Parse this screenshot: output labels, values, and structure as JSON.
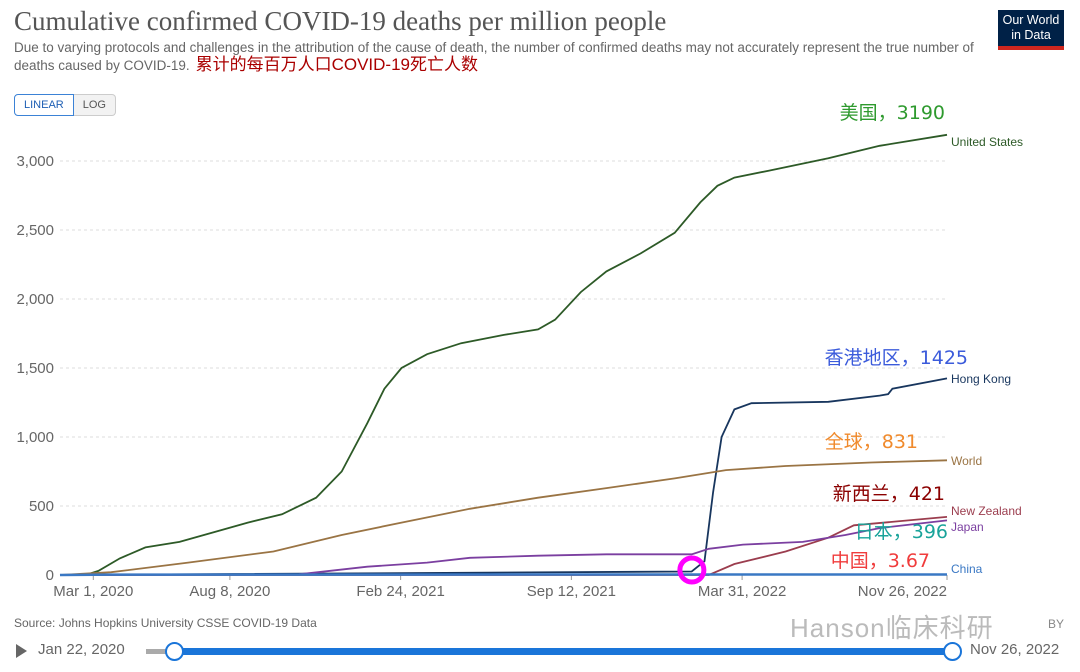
{
  "header": {
    "title": "Cumulative confirmed COVID-19 deaths per million people",
    "subtitle": "Due to varying protocols and challenges in the attribution of the cause of death, the number of confirmed deaths may not accurately represent the true number of deaths caused by COVID-19.",
    "subtitle_cn": "累计的每百万人口COVID-19死亡人数",
    "logo": "Our World in Data"
  },
  "controls": {
    "linear": "LINEAR",
    "log": "LOG"
  },
  "footer": {
    "source": "Source: Johns Hopkins University CSSE COVID-19 Data",
    "watermark": "Hanson临床科研",
    "by": "BY",
    "start_date": "Jan 22, 2020",
    "end_date": "Nov 26, 2022"
  },
  "chart_data": {
    "type": "line",
    "title": "Cumulative confirmed COVID-19 deaths per million people",
    "x_unit": "days since Jan 22, 2020",
    "xlim": [
      0,
      1039
    ],
    "ylim": [
      0,
      3000
    ],
    "y_ticks": [
      0,
      500,
      1000,
      1500,
      2000,
      2500,
      3000
    ],
    "y_tick_labels": [
      "0",
      "500",
      "1,000",
      "1,500",
      "2,000",
      "2,500",
      "3,000"
    ],
    "x_ticks": [
      39,
      199,
      399,
      599,
      799,
      1039
    ],
    "x_tick_labels": [
      "Mar 1, 2020",
      "Aug 8, 2020",
      "Feb 24, 2021",
      "Sep 12, 2021",
      "Mar 31, 2022",
      "Nov 26, 2022"
    ],
    "grid": true,
    "series": [
      {
        "name": "United States",
        "color": "#2d5a27",
        "annotation": "美国，3190",
        "annotation_color": "#2e9a2e",
        "points": [
          [
            0,
            0
          ],
          [
            30,
            0
          ],
          [
            45,
            30
          ],
          [
            70,
            120
          ],
          [
            100,
            200
          ],
          [
            140,
            240
          ],
          [
            180,
            310
          ],
          [
            220,
            380
          ],
          [
            260,
            440
          ],
          [
            300,
            560
          ],
          [
            330,
            750
          ],
          [
            360,
            1100
          ],
          [
            380,
            1350
          ],
          [
            400,
            1500
          ],
          [
            430,
            1600
          ],
          [
            470,
            1680
          ],
          [
            520,
            1740
          ],
          [
            560,
            1780
          ],
          [
            580,
            1850
          ],
          [
            610,
            2050
          ],
          [
            640,
            2200
          ],
          [
            680,
            2330
          ],
          [
            720,
            2480
          ],
          [
            750,
            2700
          ],
          [
            770,
            2820
          ],
          [
            790,
            2880
          ],
          [
            830,
            2930
          ],
          [
            900,
            3020
          ],
          [
            960,
            3110
          ],
          [
            1039,
            3190
          ]
        ]
      },
      {
        "name": "Hong Kong",
        "color": "#18365e",
        "annotation": "香港地区，1425",
        "annotation_color": "#3b5bdb",
        "points": [
          [
            0,
            0
          ],
          [
            740,
            25
          ],
          [
            755,
            100
          ],
          [
            765,
            600
          ],
          [
            775,
            1000
          ],
          [
            790,
            1200
          ],
          [
            810,
            1245
          ],
          [
            900,
            1255
          ],
          [
            960,
            1300
          ],
          [
            970,
            1310
          ],
          [
            975,
            1350
          ],
          [
            1039,
            1425
          ]
        ]
      },
      {
        "name": "World",
        "color": "#9a7444",
        "annotation": "全球，831",
        "annotation_color": "#f08a2c",
        "points": [
          [
            0,
            0
          ],
          [
            60,
            20
          ],
          [
            150,
            90
          ],
          [
            250,
            170
          ],
          [
            330,
            290
          ],
          [
            400,
            380
          ],
          [
            480,
            480
          ],
          [
            560,
            560
          ],
          [
            640,
            630
          ],
          [
            720,
            700
          ],
          [
            780,
            760
          ],
          [
            850,
            790
          ],
          [
            950,
            815
          ],
          [
            1039,
            831
          ]
        ]
      },
      {
        "name": "New Zealand",
        "color": "#9b3d4e",
        "annotation": "新西兰，421",
        "annotation_color": "#8b0000",
        "points": [
          [
            0,
            0
          ],
          [
            760,
            0
          ],
          [
            790,
            80
          ],
          [
            850,
            170
          ],
          [
            900,
            270
          ],
          [
            930,
            360
          ],
          [
            1039,
            421
          ]
        ]
      },
      {
        "name": "Japan",
        "color": "#7b3fa0",
        "annotation": "日本，396",
        "annotation_color": "#19a39a",
        "points": [
          [
            0,
            0
          ],
          [
            280,
            5
          ],
          [
            360,
            60
          ],
          [
            430,
            90
          ],
          [
            480,
            125
          ],
          [
            560,
            140
          ],
          [
            640,
            150
          ],
          [
            740,
            150
          ],
          [
            760,
            190
          ],
          [
            800,
            220
          ],
          [
            870,
            240
          ],
          [
            920,
            290
          ],
          [
            960,
            340
          ],
          [
            1039,
            396
          ]
        ]
      },
      {
        "name": "China",
        "color": "#3a78c4",
        "annotation": "中国，3.67",
        "annotation_color": "#f03c3c",
        "points": [
          [
            0,
            0
          ],
          [
            60,
            3
          ],
          [
            1039,
            3.67
          ]
        ]
      }
    ],
    "highlight_marker": {
      "x": 746,
      "y": 0,
      "color": "#ff00ff"
    }
  }
}
